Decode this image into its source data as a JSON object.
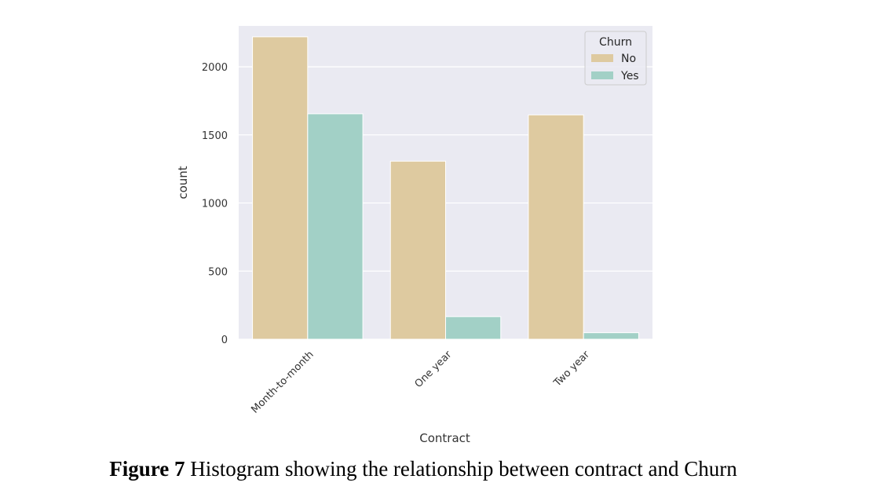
{
  "caption": {
    "label": "Figure 7",
    "text": "Histogram showing the relationship between contract and Churn"
  },
  "chart_data": {
    "type": "bar",
    "categories": [
      "Month-to-month",
      "One year",
      "Two year"
    ],
    "series": [
      {
        "name": "No",
        "values": [
          2220,
          1307,
          1647
        ],
        "color": "#decaa0"
      },
      {
        "name": "Yes",
        "values": [
          1655,
          166,
          48
        ],
        "color": "#a2d0c6"
      }
    ],
    "xlabel": "Contract",
    "ylabel": "count",
    "ylim": [
      0,
      2300
    ],
    "yticks": [
      0,
      500,
      1000,
      1500,
      2000
    ],
    "legend": {
      "title": "Churn",
      "position": "top-right"
    },
    "grid": true,
    "background": "#eaeaf2"
  }
}
